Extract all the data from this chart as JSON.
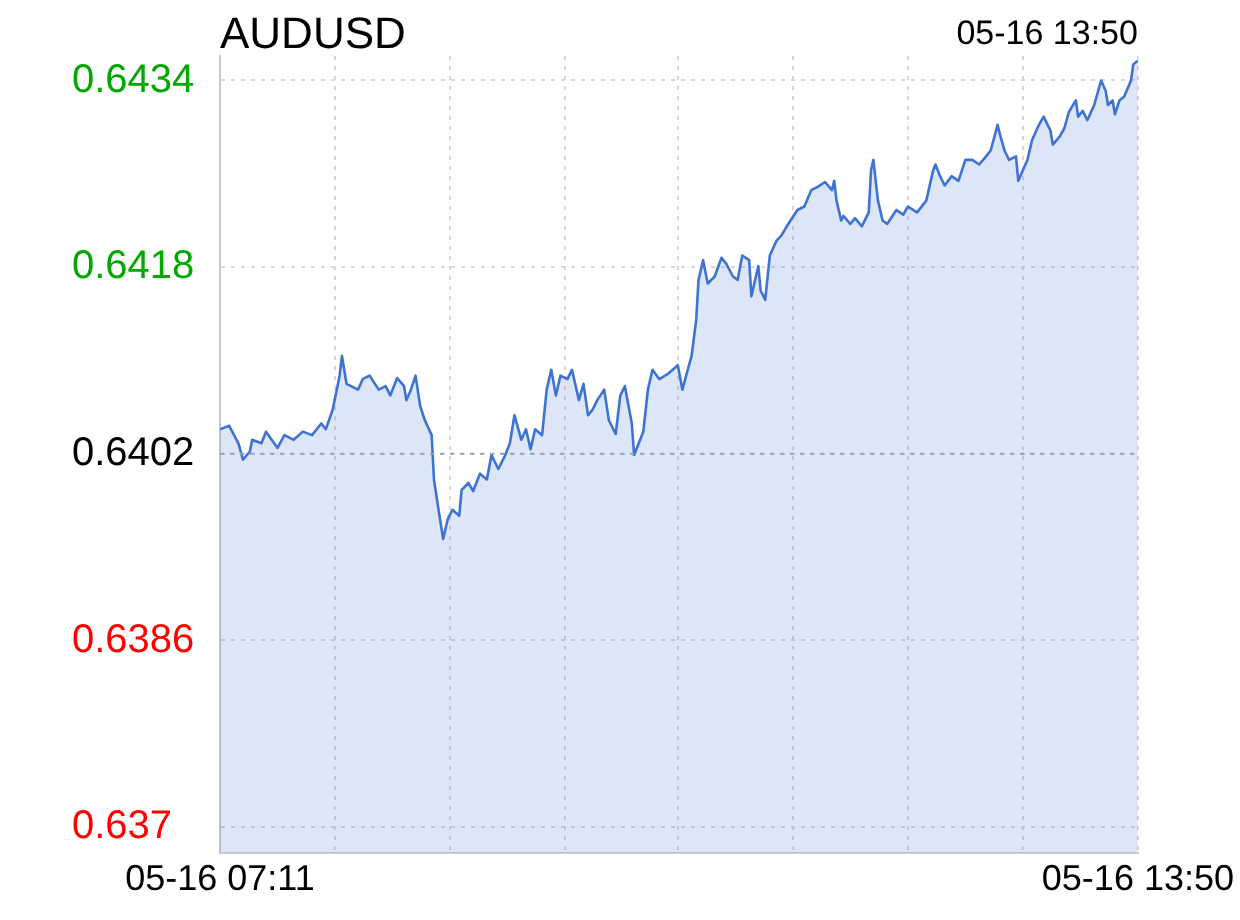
{
  "chart_data": {
    "type": "area",
    "title": "AUDUSD",
    "annotations": [
      "05-16 13:50"
    ],
    "x": [
      "--05-16T07:11",
      "--05-16T07:15",
      "--05-16T07:19",
      "--05-16T07:21",
      "--05-16T07:24",
      "--05-16T07:25",
      "--05-16T07:29",
      "--05-16T07:31",
      "--05-16T07:36",
      "--05-16T07:39",
      "--05-16T07:43",
      "--05-16T07:47",
      "--05-16T07:51",
      "--05-16T07:55",
      "--05-16T07:57",
      "--05-16T08:00",
      "--05-16T08:03",
      "--05-16T08:04",
      "--05-16T08:06",
      "--05-16T08:11",
      "--05-16T08:13",
      "--05-16T08:16",
      "--05-16T08:20",
      "--05-16T08:23",
      "--05-16T08:25",
      "--05-16T08:28",
      "--05-16T08:31",
      "--05-16T08:32",
      "--05-16T08:34",
      "--05-16T08:36",
      "--05-16T08:38",
      "--05-16T08:40",
      "--05-16T08:43",
      "--05-16T08:44",
      "--05-16T08:46",
      "--05-16T08:48",
      "--05-16T08:50",
      "--05-16T08:52",
      "--05-16T08:55",
      "--05-16T08:56",
      "--05-16T08:59",
      "--05-16T09:01",
      "--05-16T09:04",
      "--05-16T09:07",
      "--05-16T09:09",
      "--05-16T09:12",
      "--05-16T09:15",
      "--05-16T09:17",
      "--05-16T09:19",
      "--05-16T09:22",
      "--05-16T09:24",
      "--05-16T09:26",
      "--05-16T09:28",
      "--05-16T09:31",
      "--05-16T09:33",
      "--05-16T09:35",
      "--05-16T09:37",
      "--05-16T09:39",
      "--05-16T09:42",
      "--05-16T09:44",
      "--05-16T09:47",
      "--05-16T09:49",
      "--05-16T09:51",
      "--05-16T09:53",
      "--05-16T09:55",
      "--05-16T09:58",
      "--05-16T10:00",
      "--05-16T10:03",
      "--05-16T10:05",
      "--05-16T10:07",
      "--05-16T10:10",
      "--05-16T10:11",
      "--05-16T10:15",
      "--05-16T10:17",
      "--05-16T10:19",
      "--05-16T10:22",
      "--05-16T10:26",
      "--05-16T10:30",
      "--05-16T10:32",
      "--05-16T10:35",
      "--05-16T10:36",
      "--05-16T10:38",
      "--05-16T10:39",
      "--05-16T10:41",
      "--05-16T10:43",
      "--05-16T10:46",
      "--05-16T10:49",
      "--05-16T10:51",
      "--05-16T10:54",
      "--05-16T10:56",
      "--05-16T10:58",
      "--05-16T11:01",
      "--05-16T11:02",
      "--05-16T11:05",
      "--05-16T11:06",
      "--05-16T11:08",
      "--05-16T11:10",
      "--05-16T11:13",
      "--05-16T11:15",
      "--05-16T11:18",
      "--05-16T11:22",
      "--05-16T11:25",
      "--05-16T11:28",
      "--05-16T11:31",
      "--05-16T11:34",
      "--05-16T11:37",
      "--05-16T11:38",
      "--05-16T11:39",
      "--05-16T11:41",
      "--05-16T11:42",
      "--05-16T11:45",
      "--05-16T11:47",
      "--05-16T11:50",
      "--05-16T11:53",
      "--05-16T11:54",
      "--05-16T11:55",
      "--05-16T11:57",
      "--05-16T11:59",
      "--05-16T12:01",
      "--05-16T12:05",
      "--05-16T12:08",
      "--05-16T12:10",
      "--05-16T12:14",
      "--05-16T12:18",
      "--05-16T12:21",
      "--05-16T12:22",
      "--05-16T12:24",
      "--05-16T12:26",
      "--05-16T12:29",
      "--05-16T12:32",
      "--05-16T12:35",
      "--05-16T12:38",
      "--05-16T12:41",
      "--05-16T12:44",
      "--05-16T12:46",
      "--05-16T12:49",
      "--05-16T12:50",
      "--05-16T12:52",
      "--05-16T12:54",
      "--05-16T12:57",
      "--05-16T12:58",
      "--05-16T13:00",
      "--05-16T13:02",
      "--05-16T13:04",
      "--05-16T13:07",
      "--05-16T13:09",
      "--05-16T13:12",
      "--05-16T13:13",
      "--05-16T13:16",
      "--05-16T13:18",
      "--05-16T13:20",
      "--05-16T13:23",
      "--05-16T13:24",
      "--05-16T13:26",
      "--05-16T13:28",
      "--05-16T13:31",
      "--05-16T13:34",
      "--05-16T13:36",
      "--05-16T13:37",
      "--05-16T13:39",
      "--05-16T13:40",
      "--05-16T13:42",
      "--05-16T13:44",
      "--05-16T13:47",
      "--05-16T13:48",
      "--05-16T13:50"
    ],
    "series": [
      {
        "color": "#3f73d1",
        "values": [
          0.64041,
          0.64044,
          0.64029,
          0.64015,
          0.64022,
          0.64032,
          0.64029,
          0.64039,
          0.64025,
          0.64036,
          0.64032,
          0.64039,
          0.64036,
          0.64046,
          0.64041,
          0.64058,
          0.64087,
          0.64104,
          0.6408,
          0.64075,
          0.64084,
          0.64087,
          0.64075,
          0.64078,
          0.6407,
          0.64085,
          0.64078,
          0.64066,
          0.64075,
          0.64087,
          0.64061,
          0.64049,
          0.64036,
          0.63998,
          0.63972,
          0.63947,
          0.63964,
          0.63972,
          0.63967,
          0.63989,
          0.63995,
          0.63988,
          0.64003,
          0.63998,
          0.64019,
          0.64007,
          0.64019,
          0.64029,
          0.64053,
          0.64032,
          0.64041,
          0.64024,
          0.64041,
          0.64036,
          0.64075,
          0.64092,
          0.6407,
          0.64087,
          0.64084,
          0.64092,
          0.64066,
          0.6408,
          0.64053,
          0.64058,
          0.64066,
          0.64075,
          0.64049,
          0.64037,
          0.6407,
          0.64078,
          0.64046,
          0.64019,
          0.64039,
          0.64075,
          0.64092,
          0.64084,
          0.64089,
          0.64096,
          0.64075,
          0.64097,
          0.64104,
          0.64135,
          0.64169,
          0.64186,
          0.64166,
          0.64172,
          0.64188,
          0.64183,
          0.64172,
          0.64169,
          0.6419,
          0.64186,
          0.64155,
          0.64181,
          0.6416,
          0.64152,
          0.6419,
          0.64203,
          0.64207,
          0.64217,
          0.64229,
          0.64232,
          0.64246,
          0.64249,
          0.64253,
          0.64246,
          0.64254,
          0.64237,
          0.6422,
          0.64224,
          0.64217,
          0.64222,
          0.64215,
          0.64227,
          0.64263,
          0.64272,
          0.64237,
          0.6422,
          0.64217,
          0.64229,
          0.64225,
          0.64232,
          0.64227,
          0.64237,
          0.64263,
          0.64268,
          0.64258,
          0.6425,
          0.64258,
          0.64254,
          0.64272,
          0.64272,
          0.64268,
          0.64275,
          0.6428,
          0.64302,
          0.64294,
          0.6428,
          0.64272,
          0.64275,
          0.64254,
          0.64263,
          0.64272,
          0.64289,
          0.64302,
          0.64309,
          0.64297,
          0.64285,
          0.64292,
          0.64299,
          0.64313,
          0.64323,
          0.64309,
          0.64314,
          0.64306,
          0.64319,
          0.6434,
          0.64331,
          0.64319,
          0.64323,
          0.64311,
          0.64323,
          0.64326,
          0.6434,
          0.64354,
          0.64357
        ]
      }
    ],
    "xlim": [
      "--05-16T07:11",
      "--05-16T13:50"
    ],
    "xticks": [
      {
        "value": "--05-16T07:11",
        "label": "05-16 07:11"
      },
      {
        "value": "--05-16T08:01",
        "label": null
      },
      {
        "value": "--05-16T08:51",
        "label": null
      },
      {
        "value": "--05-16T09:41",
        "label": null
      },
      {
        "value": "--05-16T10:30",
        "label": null
      },
      {
        "value": "--05-16T11:20",
        "label": null
      },
      {
        "value": "--05-16T12:10",
        "label": null
      },
      {
        "value": "--05-16T13:00",
        "label": null
      },
      {
        "value": "--05-16T13:50",
        "label": "05-16 13:50"
      }
    ],
    "ylim": [
      0.63678,
      0.64361
    ],
    "yticks": [
      0.637,
      0.6386,
      0.6402,
      0.6418,
      0.6434
    ],
    "ref_lines": [
      {
        "axis": "y",
        "value": 0.6402,
        "color": "#a0a0a8",
        "line_style": "dotted"
      }
    ],
    "grid": true,
    "legend": false,
    "marker": "none",
    "line_style": "solid"
  }
}
